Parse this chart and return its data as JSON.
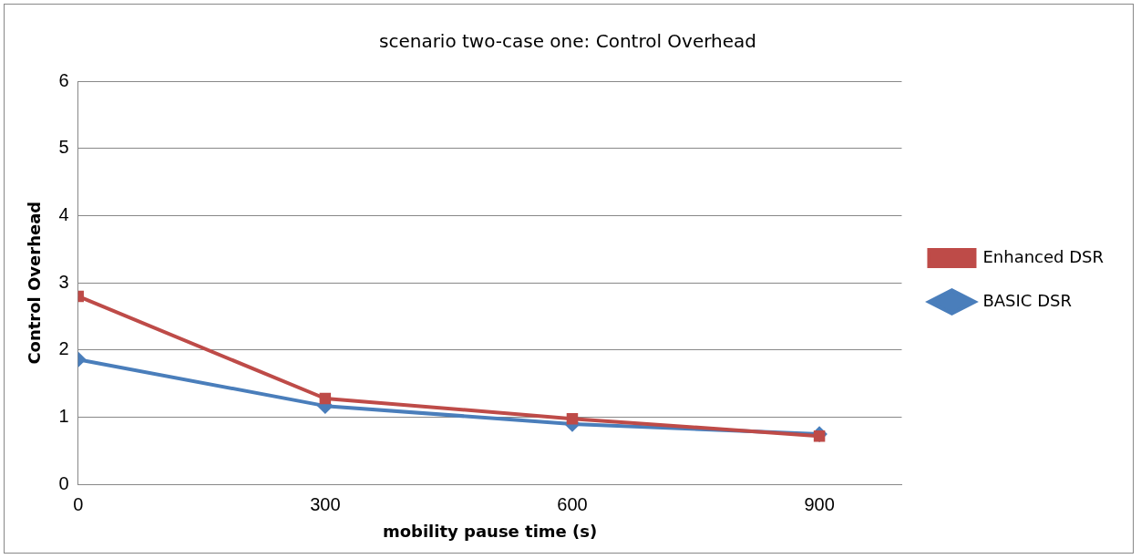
{
  "chart_data": {
    "type": "line",
    "title": "scenario two-case one: Control Overhead",
    "xlabel": "mobility pause time (s)",
    "ylabel": "Control Overhead",
    "x": [
      0,
      300,
      600,
      900
    ],
    "xlim": [
      0,
      1000
    ],
    "xticks": [
      0,
      300,
      600,
      900
    ],
    "ylim": [
      0,
      6
    ],
    "yticks": [
      0,
      1,
      2,
      3,
      4,
      5,
      6
    ],
    "grid": "y",
    "legend": "right",
    "series": [
      {
        "name": "BASIC DSR",
        "color": "#4a7ebb",
        "marker": "diamond",
        "values": [
          1.86,
          1.17,
          0.9,
          0.75
        ]
      },
      {
        "name": "Enhanced DSR",
        "color": "#be4b48",
        "marker": "square",
        "values": [
          2.8,
          1.28,
          0.98,
          0.72
        ]
      }
    ]
  }
}
